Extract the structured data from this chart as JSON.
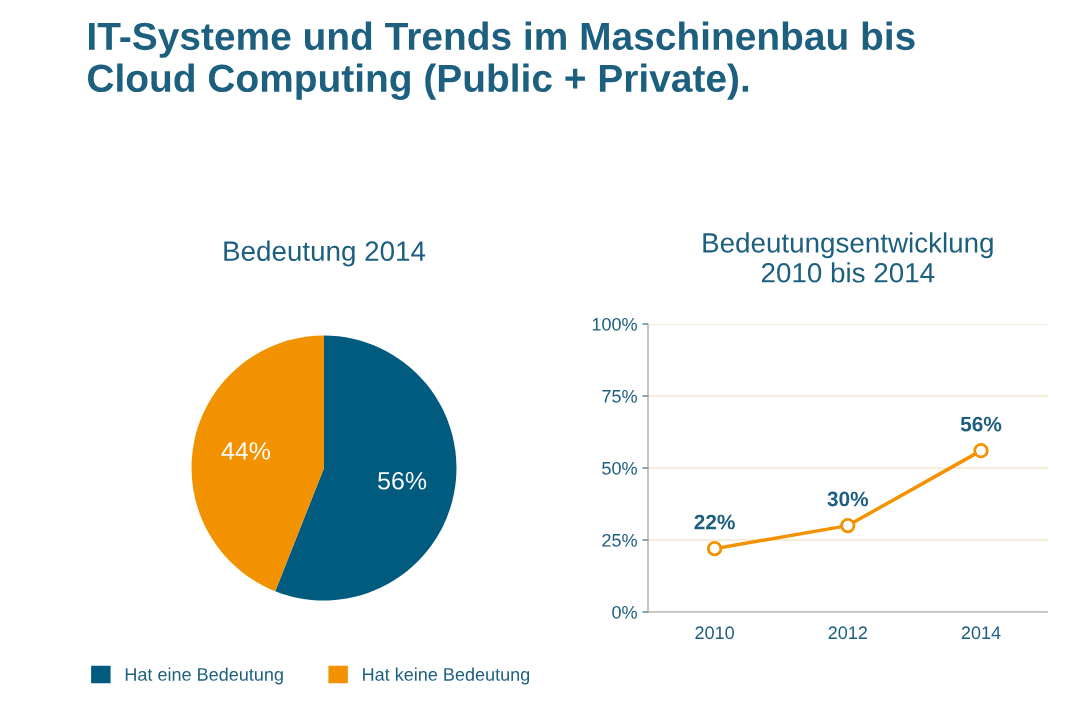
{
  "chart_data": [
    {
      "type": "pie",
      "title": "IT-Systeme und Trends im Maschinenbau bis\nCloud Computing (Public + Private).",
      "subtitle": "Bedeutung 2014",
      "categories": [
        "Hat eine Bedeutung",
        "Hat keine Bedeutung"
      ],
      "values": [
        56,
        44
      ],
      "colors": [
        "#005b7f",
        "#f39200"
      ],
      "value_labels": [
        "56%",
        "44%"
      ],
      "legend": "bottom"
    },
    {
      "type": "line",
      "title": "Bedeutungsentwicklung\n2010 bis 2014",
      "categories": [
        "2010",
        "2012",
        "2014"
      ],
      "series": [
        {
          "color": "#f39200",
          "values": [
            22,
            30,
            56
          ],
          "value_labels": [
            "22%",
            "30%",
            "56%"
          ]
        }
      ],
      "ylim": [
        0,
        100
      ],
      "yticks": [
        {
          "value": 0,
          "label": "0%"
        },
        {
          "value": 25,
          "label": "25%"
        },
        {
          "value": 50,
          "label": "50%"
        },
        {
          "value": 75,
          "label": "75%"
        },
        {
          "value": 100,
          "label": "100%"
        }
      ],
      "grid": "y",
      "marker": "circle",
      "line_style": "solid"
    }
  ]
}
